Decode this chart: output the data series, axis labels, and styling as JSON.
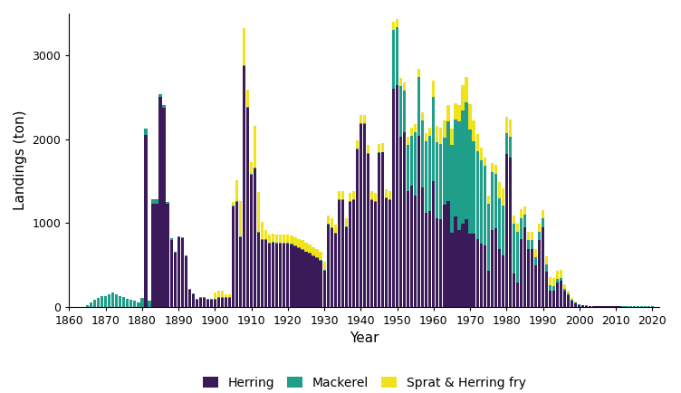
{
  "xlabel": "Year",
  "ylabel": "Landings (ton)",
  "colors": {
    "herring": "#3b1a5a",
    "mackerel": "#1f9e89",
    "sprat": "#f2e21b"
  },
  "legend_labels": [
    "Herring",
    "Mackerel",
    "Sprat & Herring fry"
  ],
  "herring": {
    "1865": 0,
    "1866": 0,
    "1867": 0,
    "1868": 0,
    "1869": 0,
    "1870": 0,
    "1871": 0,
    "1872": 0,
    "1873": 0,
    "1874": 0,
    "1875": 0,
    "1876": 0,
    "1877": 0,
    "1878": 0,
    "1879": 0,
    "1880": 0,
    "1881": 2050,
    "1882": 0,
    "1883": 1230,
    "1884": 1230,
    "1885": 2500,
    "1886": 2380,
    "1887": 1230,
    "1888": 800,
    "1889": 640,
    "1890": 830,
    "1891": 820,
    "1892": 600,
    "1893": 200,
    "1894": 150,
    "1895": 80,
    "1896": 100,
    "1897": 100,
    "1898": 80,
    "1899": 80,
    "1900": 80,
    "1901": 100,
    "1902": 100,
    "1903": 100,
    "1904": 100,
    "1905": 1200,
    "1906": 1250,
    "1907": 830,
    "1908": 2870,
    "1909": 2380,
    "1910": 1570,
    "1911": 1650,
    "1912": 880,
    "1913": 800,
    "1914": 800,
    "1915": 750,
    "1916": 760,
    "1917": 750,
    "1918": 750,
    "1919": 750,
    "1920": 750,
    "1921": 740,
    "1922": 720,
    "1923": 700,
    "1924": 680,
    "1925": 650,
    "1926": 630,
    "1927": 600,
    "1928": 580,
    "1929": 550,
    "1930": 430,
    "1931": 980,
    "1932": 940,
    "1933": 870,
    "1934": 1270,
    "1935": 1270,
    "1936": 950,
    "1937": 1250,
    "1938": 1270,
    "1939": 1880,
    "1940": 2180,
    "1941": 2180,
    "1942": 1820,
    "1943": 1270,
    "1944": 1250,
    "1945": 1830,
    "1946": 1840,
    "1947": 1290,
    "1948": 1270,
    "1949": 2600,
    "1950": 2640,
    "1951": 2030,
    "1952": 2080,
    "1953": 1380,
    "1954": 1440,
    "1955": 1330,
    "1956": 2040,
    "1957": 1420,
    "1958": 1120,
    "1959": 1140,
    "1960": 1500,
    "1961": 1060,
    "1962": 1040,
    "1963": 1220,
    "1964": 1260,
    "1965": 880,
    "1966": 1080,
    "1967": 910,
    "1968": 990,
    "1969": 1040,
    "1970": 870,
    "1971": 870,
    "1972": 810,
    "1973": 750,
    "1974": 730,
    "1975": 430,
    "1976": 910,
    "1977": 940,
    "1978": 690,
    "1979": 610,
    "1980": 1820,
    "1981": 1780,
    "1982": 390,
    "1983": 290,
    "1984": 810,
    "1985": 950,
    "1986": 690,
    "1987": 690,
    "1988": 490,
    "1989": 790,
    "1990": 950,
    "1991": 420,
    "1992": 190,
    "1993": 190,
    "1994": 290,
    "1995": 310,
    "1996": 190,
    "1997": 140,
    "1998": 70,
    "1999": 40,
    "2000": 20,
    "2001": 15,
    "2002": 10,
    "2003": 8,
    "2004": 5,
    "2005": 4,
    "2006": 3,
    "2007": 2,
    "2008": 2,
    "2009": 1,
    "2010": 1,
    "2011": 1,
    "2012": 0,
    "2013": 0,
    "2014": 0,
    "2015": 0,
    "2016": 0,
    "2017": 0,
    "2018": 0,
    "2019": 0,
    "2020": 0
  },
  "mackerel": {
    "1865": 20,
    "1866": 50,
    "1867": 80,
    "1868": 100,
    "1869": 120,
    "1870": 130,
    "1871": 150,
    "1872": 170,
    "1873": 150,
    "1874": 130,
    "1875": 110,
    "1876": 90,
    "1877": 80,
    "1878": 70,
    "1879": 50,
    "1880": 100,
    "1881": 80,
    "1882": 70,
    "1883": 50,
    "1884": 50,
    "1885": 40,
    "1886": 30,
    "1887": 20,
    "1888": 20,
    "1889": 10,
    "1890": 10,
    "1891": 10,
    "1892": 10,
    "1893": 10,
    "1894": 10,
    "1895": 10,
    "1896": 10,
    "1897": 10,
    "1898": 10,
    "1899": 10,
    "1900": 10,
    "1901": 10,
    "1902": 10,
    "1903": 10,
    "1904": 10,
    "1905": 10,
    "1906": 10,
    "1907": 10,
    "1908": 10,
    "1909": 10,
    "1910": 10,
    "1911": 10,
    "1912": 10,
    "1913": 10,
    "1914": 10,
    "1915": 10,
    "1916": 10,
    "1917": 10,
    "1918": 10,
    "1919": 10,
    "1920": 10,
    "1921": 10,
    "1922": 10,
    "1923": 10,
    "1924": 10,
    "1925": 10,
    "1926": 10,
    "1927": 10,
    "1928": 10,
    "1929": 10,
    "1930": 10,
    "1931": 10,
    "1932": 10,
    "1933": 10,
    "1934": 10,
    "1935": 10,
    "1936": 10,
    "1937": 10,
    "1938": 10,
    "1939": 10,
    "1940": 10,
    "1941": 10,
    "1942": 10,
    "1943": 10,
    "1944": 10,
    "1945": 10,
    "1946": 10,
    "1947": 10,
    "1948": 10,
    "1949": 700,
    "1950": 700,
    "1951": 600,
    "1952": 500,
    "1953": 550,
    "1954": 600,
    "1955": 750,
    "1956": 700,
    "1957": 800,
    "1958": 850,
    "1959": 900,
    "1960": 1000,
    "1961": 900,
    "1962": 900,
    "1963": 800,
    "1964": 950,
    "1965": 1050,
    "1966": 1150,
    "1967": 1300,
    "1968": 1350,
    "1969": 1400,
    "1970": 1250,
    "1971": 1100,
    "1972": 1050,
    "1973": 1000,
    "1974": 950,
    "1975": 800,
    "1976": 700,
    "1977": 650,
    "1978": 600,
    "1979": 600,
    "1980": 250,
    "1981": 250,
    "1982": 600,
    "1983": 600,
    "1984": 250,
    "1985": 150,
    "1986": 100,
    "1987": 100,
    "1988": 100,
    "1989": 100,
    "1990": 100,
    "1991": 80,
    "1992": 60,
    "1993": 50,
    "1994": 40,
    "1995": 30,
    "1996": 20,
    "1997": 15,
    "1998": 10,
    "1999": 8,
    "2000": 6,
    "2001": 5,
    "2002": 4,
    "2003": 3,
    "2004": 3,
    "2005": 3,
    "2006": 3,
    "2007": 3,
    "2008": 3,
    "2009": 3,
    "2010": 3,
    "2011": 3,
    "2012": 3,
    "2013": 2,
    "2014": 2,
    "2015": 2,
    "2016": 2,
    "2017": 2,
    "2018": 2,
    "2019": 2,
    "2020": 2
  },
  "sprat": {
    "1865": 0,
    "1866": 0,
    "1867": 0,
    "1868": 0,
    "1869": 0,
    "1870": 0,
    "1871": 0,
    "1872": 0,
    "1873": 0,
    "1874": 0,
    "1875": 0,
    "1876": 0,
    "1877": 0,
    "1878": 0,
    "1879": 0,
    "1880": 0,
    "1881": 0,
    "1882": 0,
    "1883": 0,
    "1884": 0,
    "1885": 0,
    "1886": 0,
    "1887": 0,
    "1888": 0,
    "1889": 0,
    "1890": 0,
    "1891": 0,
    "1892": 0,
    "1893": 0,
    "1894": 0,
    "1895": 0,
    "1896": 0,
    "1897": 0,
    "1898": 0,
    "1899": 0,
    "1900": 80,
    "1901": 80,
    "1902": 80,
    "1903": 40,
    "1904": 40,
    "1905": 40,
    "1906": 250,
    "1907": 420,
    "1908": 450,
    "1909": 200,
    "1910": 150,
    "1911": 500,
    "1912": 480,
    "1913": 200,
    "1914": 100,
    "1915": 100,
    "1916": 100,
    "1917": 100,
    "1918": 100,
    "1919": 100,
    "1920": 100,
    "1921": 100,
    "1922": 100,
    "1923": 100,
    "1924": 100,
    "1925": 100,
    "1926": 100,
    "1927": 100,
    "1928": 100,
    "1929": 100,
    "1930": 100,
    "1931": 100,
    "1932": 100,
    "1933": 100,
    "1934": 100,
    "1935": 100,
    "1936": 100,
    "1937": 100,
    "1938": 100,
    "1939": 100,
    "1940": 100,
    "1941": 100,
    "1942": 100,
    "1943": 100,
    "1944": 100,
    "1945": 100,
    "1946": 100,
    "1947": 100,
    "1948": 100,
    "1949": 100,
    "1950": 100,
    "1951": 100,
    "1952": 100,
    "1953": 100,
    "1954": 100,
    "1955": 100,
    "1956": 100,
    "1957": 100,
    "1958": 100,
    "1959": 100,
    "1960": 200,
    "1961": 200,
    "1962": 200,
    "1963": 200,
    "1964": 200,
    "1965": 200,
    "1966": 200,
    "1967": 200,
    "1968": 300,
    "1969": 300,
    "1970": 300,
    "1971": 250,
    "1972": 200,
    "1973": 150,
    "1974": 100,
    "1975": 100,
    "1976": 100,
    "1977": 100,
    "1978": 200,
    "1979": 200,
    "1980": 200,
    "1981": 200,
    "1982": 100,
    "1983": 100,
    "1984": 100,
    "1985": 100,
    "1986": 100,
    "1987": 100,
    "1988": 100,
    "1989": 100,
    "1990": 100,
    "1991": 100,
    "1992": 100,
    "1993": 100,
    "1994": 100,
    "1995": 100,
    "1996": 50,
    "1997": 30,
    "1998": 20,
    "1999": 10,
    "2000": 0,
    "2001": 0,
    "2002": 0,
    "2003": 0,
    "2004": 0,
    "2005": 0,
    "2006": 0,
    "2007": 0,
    "2008": 0,
    "2009": 0,
    "2010": 0,
    "2011": 0,
    "2012": 0,
    "2013": 0,
    "2014": 0,
    "2015": 0,
    "2016": 0,
    "2017": 0,
    "2018": 0,
    "2019": 0,
    "2020": 0
  },
  "ylim": [
    0,
    3500
  ],
  "xlim": [
    1860,
    2022
  ],
  "yticks": [
    0,
    1000,
    2000,
    3000
  ],
  "xticks": [
    1860,
    1870,
    1880,
    1890,
    1900,
    1910,
    1920,
    1930,
    1940,
    1950,
    1960,
    1970,
    1980,
    1990,
    2000,
    2010,
    2020
  ],
  "bar_width": 0.8
}
